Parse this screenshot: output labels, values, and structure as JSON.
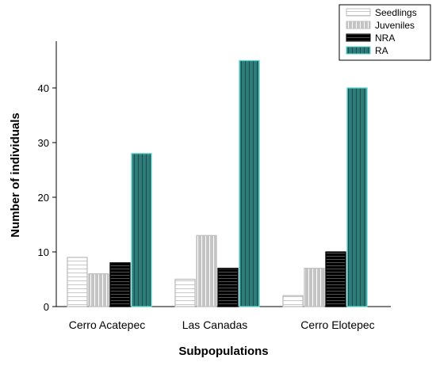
{
  "chart_data": {
    "type": "bar",
    "title": "",
    "xlabel": "Subpopulations",
    "ylabel": "Number of individuals",
    "ylim": [
      0,
      50
    ],
    "yticks": [
      0,
      10,
      20,
      30,
      40
    ],
    "categories": [
      "Cerro Acatepec",
      "Las Canadas",
      "Cerro Elotepec"
    ],
    "series": [
      {
        "name": "Seedlings",
        "values": [
          9,
          5,
          2
        ],
        "fill": "#ffffff",
        "stroke": "#bdbdbd",
        "pattern": "horizontal-lines"
      },
      {
        "name": "Juveniles",
        "values": [
          6,
          13,
          7
        ],
        "fill": "#c0c0c0",
        "stroke": "#c0c0c0",
        "pattern": "vertical-lines"
      },
      {
        "name": "NRA",
        "values": [
          8,
          7,
          10
        ],
        "fill": "#000000",
        "stroke": "#000000",
        "pattern": "horizontal-lines"
      },
      {
        "name": "RA",
        "values": [
          28,
          45,
          40
        ],
        "fill": "#2e7d7a",
        "stroke": "#5fd6d2",
        "pattern": "vertical-lines"
      }
    ],
    "legend_position": "top-right",
    "grid": false
  }
}
